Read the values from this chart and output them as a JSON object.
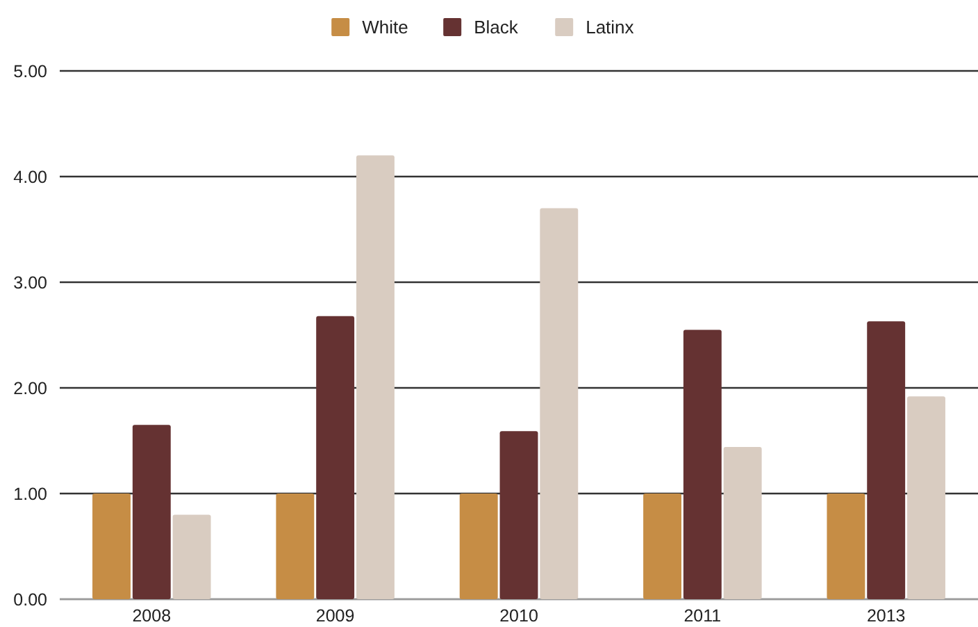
{
  "chart_data": {
    "type": "bar",
    "categories": [
      "2008",
      "2009",
      "2010",
      "2011",
      "2013"
    ],
    "series": [
      {
        "name": "White",
        "color": "#c68d45",
        "values": [
          1,
          1,
          1,
          1,
          1
        ]
      },
      {
        "name": "Black",
        "color": "#653232",
        "values": [
          1.65,
          2.68,
          1.59,
          2.55,
          2.63
        ]
      },
      {
        "name": "Latinx",
        "color": "#d9ccc1",
        "values": [
          0.8,
          4.2,
          3.7,
          1.44,
          1.92
        ]
      }
    ],
    "ylim": [
      0,
      5
    ],
    "yticks": [
      {
        "value": 0,
        "label": "0.00"
      },
      {
        "value": 1,
        "label": "1.00"
      },
      {
        "value": 2,
        "label": "2.00"
      },
      {
        "value": 3,
        "label": "3.00"
      },
      {
        "value": 4,
        "label": "4.00"
      },
      {
        "value": 5,
        "label": "5.00"
      }
    ],
    "grid": "y",
    "legend": "top"
  }
}
